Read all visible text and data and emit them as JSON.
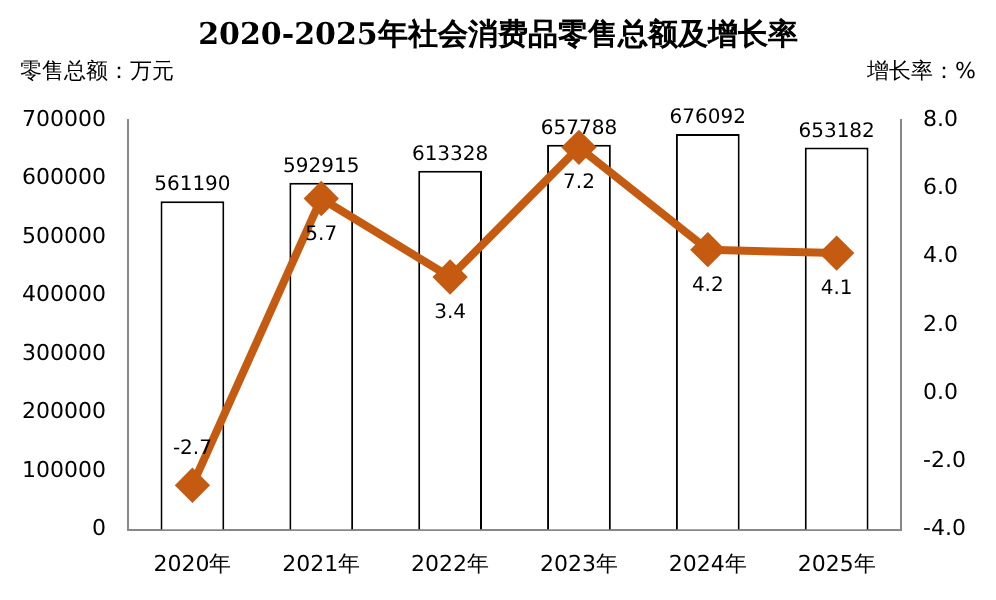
{
  "chart_data": {
    "type": "bar",
    "title": "2020-2025年社会消费品零售总额及增长率",
    "ylabel": "零售总额：万元",
    "y2label": "增长率：%",
    "categories": [
      "2020年",
      "2021年",
      "2022年",
      "2023年",
      "2024年",
      "2025年"
    ],
    "series": [
      {
        "color": "#ffffff",
        "values": [
          561190,
          592915,
          613328,
          657788,
          676092,
          653182
        ]
      },
      {
        "type": "line",
        "axis": "y2",
        "color": "#c55a11",
        "marker": "diamond",
        "values": [
          -2.7,
          5.7,
          3.4,
          7.2,
          4.2,
          4.1
        ]
      }
    ],
    "ylim": [
      0,
      700000
    ],
    "yticks": [
      0,
      100000,
      200000,
      300000,
      400000,
      500000,
      600000,
      700000
    ],
    "y2lim": [
      -4,
      8
    ],
    "y2ticks": [
      {
        "value": -4,
        "label": "-4.0"
      },
      {
        "value": -2,
        "label": "-2.0"
      },
      {
        "value": 0,
        "label": "0.0"
      },
      {
        "value": 2,
        "label": "2.0"
      },
      {
        "value": 4,
        "label": "4.0"
      },
      {
        "value": 6,
        "label": "6.0"
      },
      {
        "value": 8,
        "label": "8.0"
      }
    ],
    "data_labels": true,
    "grid": false,
    "legend": false
  }
}
